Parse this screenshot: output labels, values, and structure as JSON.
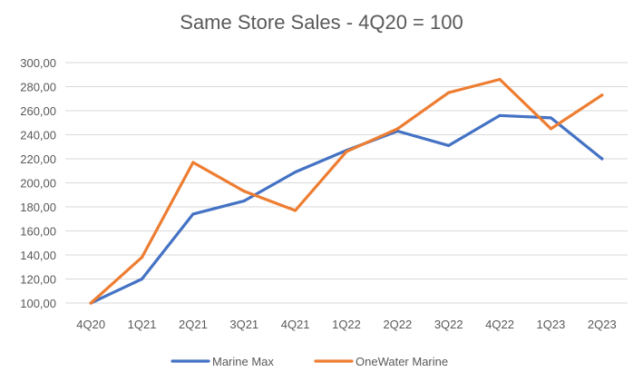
{
  "chart_data": {
    "type": "line",
    "title": "Same Store Sales - 4Q20 = 100",
    "xlabel": "",
    "ylabel": "",
    "categories": [
      "4Q20",
      "1Q21",
      "2Q21",
      "3Q21",
      "4Q21",
      "1Q22",
      "2Q22",
      "3Q22",
      "4Q22",
      "1Q23",
      "2Q23"
    ],
    "ylim": [
      100,
      300
    ],
    "yticks": [
      "100,00",
      "120,00",
      "140,00",
      "160,00",
      "180,00",
      "200,00",
      "220,00",
      "240,00",
      "260,00",
      "280,00",
      "300,00"
    ],
    "grid": true,
    "legend_position": "bottom",
    "series": [
      {
        "name": "Marine Max",
        "color": "#4472c4",
        "values": [
          100,
          120,
          174,
          185,
          209,
          227,
          243,
          231,
          256,
          254,
          220
        ]
      },
      {
        "name": "OneWater Marine",
        "color": "#ed7d31",
        "values": [
          100,
          138,
          217,
          193,
          177,
          226,
          245,
          275,
          286,
          245,
          273
        ]
      }
    ]
  }
}
